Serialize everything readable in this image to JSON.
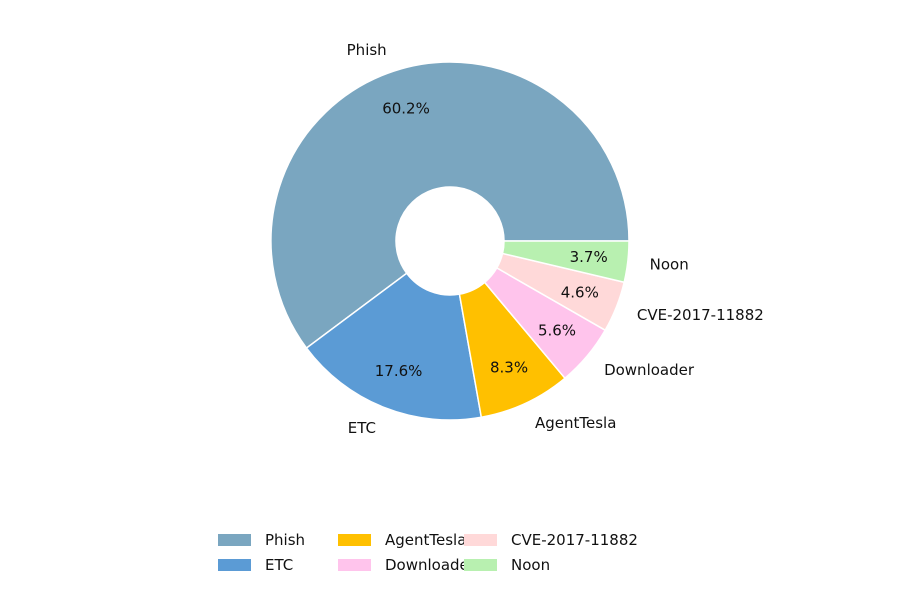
{
  "chart_data": {
    "type": "pie",
    "donut": true,
    "title": "",
    "slices": [
      {
        "label": "Phish",
        "value": 60.2,
        "pct_label": "60.2%",
        "color": "#7aa6c0"
      },
      {
        "label": "ETC",
        "value": 17.6,
        "pct_label": "17.6%",
        "color": "#5b9bd5"
      },
      {
        "label": "AgentTesla",
        "value": 8.3,
        "pct_label": "8.3%",
        "color": "#ffc000"
      },
      {
        "label": "Downloader",
        "value": 5.6,
        "pct_label": "5.6%",
        "color": "#ffc4ec"
      },
      {
        "label": "CVE-2017-11882",
        "value": 4.6,
        "pct_label": "4.6%",
        "color": "#ffd9d9"
      },
      {
        "label": "Noon",
        "value": 3.7,
        "pct_label": "3.7%",
        "color": "#b8f0b0"
      }
    ],
    "legend": {
      "placement": "bottom-center",
      "entries": [
        "Phish",
        "ETC",
        "AgentTesla",
        "Downloader",
        "CVE-2017-11882",
        "Noon"
      ]
    }
  }
}
